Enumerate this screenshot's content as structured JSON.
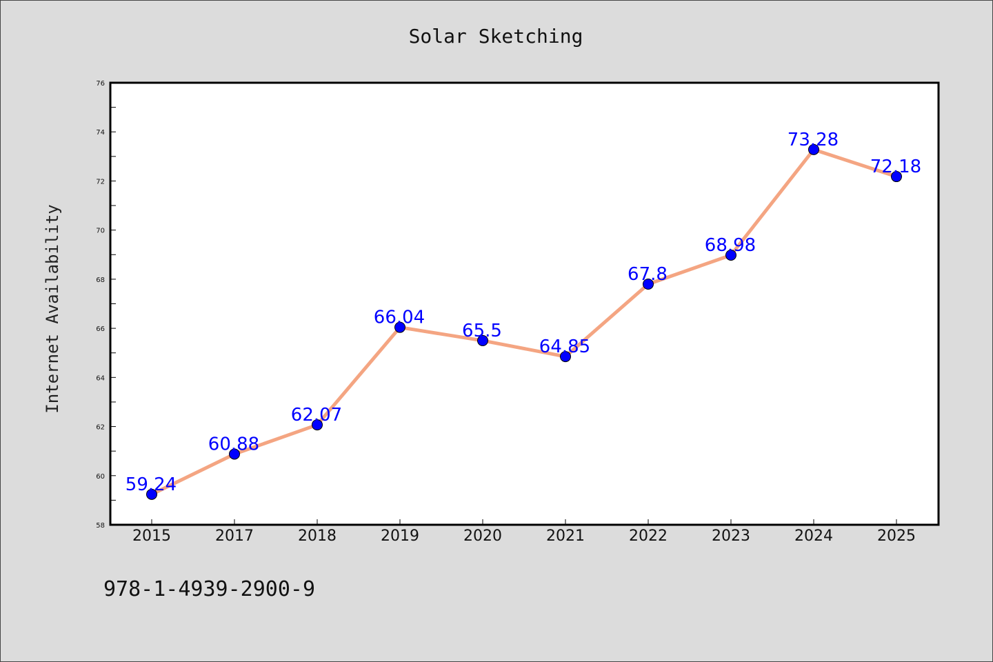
{
  "chart_data": {
    "type": "line",
    "title": "Solar Sketching",
    "xlabel": "",
    "ylabel": "Internet Availability",
    "categories": [
      "2015",
      "2017",
      "2018",
      "2019",
      "2020",
      "2021",
      "2022",
      "2023",
      "2024",
      "2025"
    ],
    "series": [
      {
        "values": [
          59.24,
          60.88,
          62.07,
          66.04,
          65.5,
          64.85,
          67.8,
          68.98,
          73.28,
          72.18
        ],
        "data_labels": [
          "59.24",
          "60.88",
          "62.07",
          "66.04",
          "65.5",
          "64.85",
          "67.8",
          "68.98",
          "73.28",
          "72.18"
        ]
      }
    ],
    "ylim": [
      58,
      76
    ],
    "yticks": [
      "58",
      "60",
      "62",
      "64",
      "66",
      "68",
      "70",
      "72",
      "74",
      "76"
    ],
    "grid": false,
    "legend": "none",
    "colors": {
      "line": "#f4a582",
      "marker": "#0000ff",
      "data_label": "#0000ff",
      "plot_background": "#ffffff",
      "figure_background": "#dcdcdc"
    }
  },
  "footer": {
    "isbn": "978-1-4939-2900-9"
  }
}
